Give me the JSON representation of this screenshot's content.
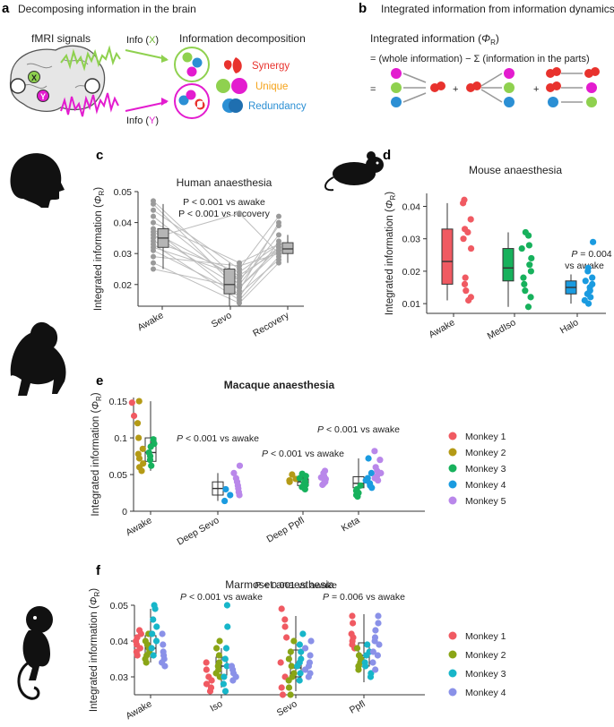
{
  "panel_a": {
    "label": "a",
    "title": "Decomposing information in the brain",
    "fmri_label": "fMRI signals",
    "info_x_prefix": "Info (",
    "info_x_var": "X",
    "info_x_suffix": ")",
    "info_y_prefix": "Info (",
    "info_y_var": "Y",
    "info_y_suffix": ")",
    "brain_x": "X",
    "brain_y": "Y",
    "decomp_label": "Information decomposition",
    "synergy": "Synergy",
    "unique": "Unique",
    "redundancy": "Redundancy",
    "colors": {
      "x_green": "#8fd14f",
      "y_magenta": "#e31ccf",
      "synergy": "#e8322d",
      "unique": "#f5a31a",
      "redundancy": "#2b8fd4"
    }
  },
  "panel_b": {
    "label": "b",
    "title": "Integrated information from information dynamics",
    "line1": "Integrated information (",
    "phi": "Φ",
    "phi_sub": "R",
    "line1_end": ")",
    "line2": "= (whole information) − Σ (information in the parts)",
    "eq": "=",
    "plus1": "+",
    "plus2": "+"
  },
  "chart_data": [
    {
      "panel": "c",
      "type": "box-scatter-paired",
      "title": "Human anaesthesia",
      "annotations": [
        "P < 0.001 vs awake",
        "P < 0.001 vs recovery"
      ],
      "ylabel": "Integrated information (ΦR)",
      "ylabel_main": "Integrated information (",
      "ylabel_phi": "Φ",
      "ylabel_sub": "R",
      "ylabel_end": ")",
      "ylim": [
        0.013,
        0.05
      ],
      "yticks": [
        "0.02",
        "0.03",
        "0.04",
        "0.05"
      ],
      "categories": [
        "Awake",
        "Sevo",
        "Recovery"
      ],
      "box": [
        {
          "q1": 0.032,
          "median": 0.035,
          "q3": 0.038,
          "lo": 0.025,
          "hi": 0.046
        },
        {
          "q1": 0.017,
          "median": 0.02,
          "q3": 0.025,
          "lo": 0.013,
          "hi": 0.027
        },
        {
          "q1": 0.03,
          "median": 0.0315,
          "q3": 0.0335,
          "lo": 0.027,
          "hi": 0.036
        }
      ],
      "subjects": [
        [
          0.047,
          0.021,
          0.039
        ],
        [
          0.046,
          0.018,
          0.04
        ],
        [
          0.044,
          0.025,
          0.042
        ],
        [
          0.042,
          0.02,
          0.036
        ],
        [
          0.04,
          0.027,
          0.033
        ],
        [
          0.038,
          0.016,
          0.034
        ],
        [
          0.037,
          0.022,
          0.032
        ],
        [
          0.036,
          0.019,
          0.031
        ],
        [
          0.035,
          0.043,
          0.03
        ],
        [
          0.034,
          0.024,
          0.033
        ],
        [
          0.033,
          0.015,
          0.029
        ],
        [
          0.032,
          0.023,
          0.031
        ],
        [
          0.031,
          0.017,
          0.028
        ],
        [
          0.029,
          0.026,
          0.03
        ],
        [
          0.027,
          0.014,
          0.027
        ],
        [
          0.025,
          0.019,
          0.032
        ]
      ],
      "colors": {
        "point": "#9a9a9a",
        "box": "#b5b5b5",
        "line": "#bdbdbd"
      }
    },
    {
      "panel": "d",
      "type": "box-scatter",
      "title": "Mouse anaesthesia",
      "annotations": [
        "P = 0.004",
        "vs awake"
      ],
      "ylabel": "Integrated information (ΦR)",
      "ylabel_main": "Integrated information (",
      "ylabel_phi": "Φ",
      "ylabel_sub": "R",
      "ylabel_end": ")",
      "ylim": [
        0.007,
        0.044
      ],
      "yticks": [
        "0.01",
        "0.02",
        "0.03",
        "0.04"
      ],
      "categories": [
        "Awake",
        "MedIso",
        "Halo"
      ],
      "colors": [
        "#f05a62",
        "#17b15c",
        "#1a9be0"
      ],
      "box": [
        {
          "q1": 0.016,
          "median": 0.023,
          "q3": 0.033,
          "lo": 0.011,
          "hi": 0.041
        },
        {
          "q1": 0.017,
          "median": 0.021,
          "q3": 0.027,
          "lo": 0.009,
          "hi": 0.032
        },
        {
          "q1": 0.013,
          "median": 0.015,
          "q3": 0.017,
          "lo": 0.01,
          "hi": 0.019
        }
      ],
      "points": [
        [
          0.042,
          0.041,
          0.036,
          0.033,
          0.032,
          0.03,
          0.027,
          0.018,
          0.016,
          0.014,
          0.012,
          0.011
        ],
        [
          0.032,
          0.031,
          0.028,
          0.027,
          0.024,
          0.022,
          0.02,
          0.018,
          0.016,
          0.014,
          0.012,
          0.009
        ],
        [
          0.029,
          0.021,
          0.02,
          0.018,
          0.017,
          0.016,
          0.015,
          0.014,
          0.013,
          0.012,
          0.011,
          0.01
        ]
      ]
    },
    {
      "panel": "e",
      "type": "box-scatter-grouped",
      "title": "Macaque anaesthesia",
      "ylabel": "Integrated information (ΦR)",
      "ylabel_main": "Integrated information (",
      "ylabel_phi": "Φ",
      "ylabel_sub": "R",
      "ylabel_end": ")",
      "ylim": [
        0,
        0.155
      ],
      "yticks": [
        "0",
        "0.05",
        "0.1",
        "0.15"
      ],
      "categories": [
        "Awake",
        "Deep Sevo",
        "Deep Ppfl",
        "Keta"
      ],
      "annotations": [
        "",
        "P < 0.001 vs awake",
        "P < 0.001 vs awake",
        "P < 0.001 vs awake"
      ],
      "legend": [
        "Monkey 1",
        "Monkey 2",
        "Monkey 3",
        "Monkey 4",
        "Monkey 5"
      ],
      "colors": [
        "#f05a62",
        "#b49a16",
        "#17b15c",
        "#1a9be0",
        "#b987ea"
      ],
      "box": [
        {
          "q1": 0.068,
          "median": 0.08,
          "q3": 0.1,
          "lo": 0.055,
          "hi": 0.15
        },
        {
          "q1": 0.022,
          "median": 0.031,
          "q3": 0.04,
          "lo": 0.014,
          "hi": 0.052
        },
        {
          "q1": 0.035,
          "median": 0.04,
          "q3": 0.044,
          "lo": 0.03,
          "hi": 0.051
        },
        {
          "q1": 0.032,
          "median": 0.038,
          "q3": 0.047,
          "lo": 0.025,
          "hi": 0.072
        }
      ],
      "points": [
        [
          [
            0.148,
            0.13
          ],
          [
            0.15,
            0.12,
            0.1,
            0.085,
            0.078,
            0.072,
            0.065,
            0.06,
            0.055
          ],
          [
            0.098,
            0.092,
            0.088,
            0.08,
            0.075,
            0.07,
            0.062
          ],
          [],
          []
        ],
        [
          [],
          [],
          [],
          [
            0.03,
            0.022,
            0.014
          ],
          [
            0.062,
            0.052,
            0.045,
            0.04,
            0.035,
            0.031,
            0.026,
            0.022
          ]
        ],
        [
          [],
          [
            0.05,
            0.044,
            0.042,
            0.04
          ],
          [
            0.051,
            0.048,
            0.045,
            0.041,
            0.038,
            0.036,
            0.033,
            0.03
          ],
          [],
          [
            0.055,
            0.052,
            0.048,
            0.046,
            0.044,
            0.042,
            0.04,
            0.038,
            0.036
          ]
        ],
        [
          [],
          [],
          [
            0.035,
            0.03,
            0.028,
            0.025,
            0.022,
            0.02
          ],
          [
            0.072,
            0.052,
            0.045,
            0.042,
            0.038,
            0.035,
            0.032
          ],
          [
            0.082,
            0.07,
            0.06,
            0.055,
            0.052,
            0.048,
            0.045,
            0.042
          ]
        ]
      ]
    },
    {
      "panel": "f",
      "type": "box-scatter-grouped",
      "title": "Marmoset anaesthesia",
      "ylabel": "Integrated information (ΦR)",
      "ylabel_main": "Integrated information (",
      "ylabel_phi": "Φ",
      "ylabel_sub": "R",
      "ylabel_end": ")",
      "ylim": [
        0.025,
        0.05
      ],
      "yticks": [
        "0.03",
        "0.04",
        "0.05"
      ],
      "categories": [
        "Awake",
        "Iso",
        "Sevo",
        "Ppfl"
      ],
      "annotations": [
        "",
        "P < 0.001 vs awake",
        "P < 0.001 vs awake",
        "P = 0.006 vs awake"
      ],
      "legend": [
        "Monkey 1",
        "Monkey 2",
        "Monkey 3",
        "Monkey 4"
      ],
      "colors": [
        "#f05a62",
        "#8aa516",
        "#17b6c9",
        "#8a91e8"
      ],
      "box": [
        {
          "q1": 0.0365,
          "median": 0.038,
          "q3": 0.0415,
          "lo": 0.034,
          "hi": 0.049
        },
        {
          "q1": 0.0305,
          "median": 0.033,
          "q3": 0.0355,
          "lo": 0.027,
          "hi": 0.038
        },
        {
          "q1": 0.03,
          "median": 0.0325,
          "q3": 0.0375,
          "lo": 0.026,
          "hi": 0.047
        },
        {
          "q1": 0.033,
          "median": 0.036,
          "q3": 0.0395,
          "lo": 0.0285,
          "hi": 0.0475
        }
      ],
      "points": [
        [
          [
            0.043,
            0.042,
            0.041,
            0.04,
            0.039,
            0.038,
            0.037,
            0.036
          ],
          [
            0.042,
            0.04,
            0.039,
            0.038,
            0.037,
            0.036,
            0.035,
            0.034
          ],
          [
            0.05,
            0.049,
            0.046,
            0.044,
            0.042,
            0.04,
            0.038,
            0.036
          ],
          [
            0.042,
            0.039,
            0.037,
            0.036,
            0.035,
            0.034,
            0.033
          ]
        ],
        [
          [
            0.034,
            0.032,
            0.03,
            0.029,
            0.028,
            0.027,
            0.026
          ],
          [
            0.04,
            0.038,
            0.036,
            0.034,
            0.033,
            0.032,
            0.031,
            0.03
          ],
          [
            0.05,
            0.044,
            0.038,
            0.035,
            0.033,
            0.03,
            0.028,
            0.026
          ],
          [
            0.033,
            0.032,
            0.031,
            0.03,
            0.029
          ]
        ],
        [
          [
            0.049,
            0.046,
            0.044,
            0.041,
            0.034,
            0.03,
            0.027,
            0.025
          ],
          [
            0.04,
            0.037,
            0.035,
            0.033,
            0.031,
            0.03,
            0.029,
            0.027,
            0.025
          ],
          [
            0.042,
            0.039,
            0.037,
            0.035,
            0.034,
            0.033,
            0.031,
            0.029
          ],
          [
            0.04,
            0.038,
            0.036,
            0.034,
            0.033,
            0.032,
            0.031,
            0.03
          ]
        ],
        [
          [
            0.047,
            0.045,
            0.042,
            0.041,
            0.04,
            0.039,
            0.038
          ],
          [
            0.038,
            0.036,
            0.035,
            0.034,
            0.033,
            0.032
          ],
          [
            0.039,
            0.037,
            0.036,
            0.034,
            0.033,
            0.031,
            0.03
          ],
          [
            0.047,
            0.045,
            0.043,
            0.041,
            0.04,
            0.039,
            0.037,
            0.036,
            0.034,
            0.032
          ]
        ]
      ]
    }
  ]
}
